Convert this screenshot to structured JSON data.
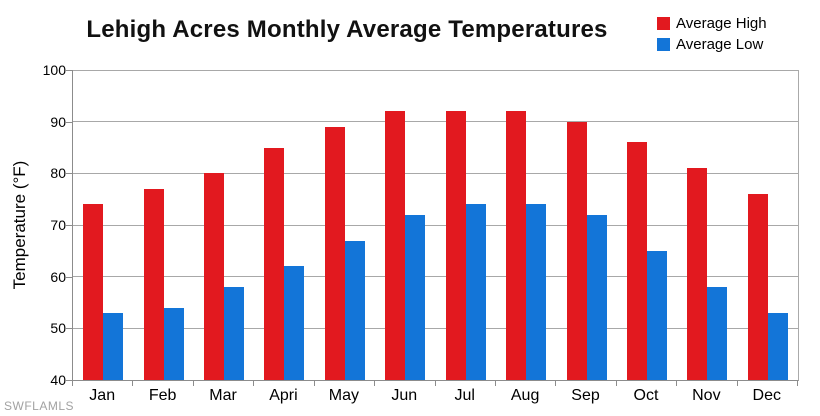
{
  "title": "Lehigh Acres Monthly Average Temperatures",
  "watermark": "SWFLAMLS",
  "colors": {
    "high_bar": "#e2191f",
    "low_bar": "#1375d8",
    "gridline": "#a8a8a8",
    "axis": "#8c8c8c",
    "text": "#000000",
    "watermark": "#a2a2a2"
  },
  "legend": {
    "position": "top-right",
    "items": [
      {
        "label": "Average High",
        "color": "#e2191f"
      },
      {
        "label": "Average Low",
        "color": "#1375d8"
      }
    ]
  },
  "chart_data": {
    "type": "bar",
    "title": "Lehigh Acres Monthly Average Temperatures",
    "xlabel": "",
    "ylabel": "Temperature (°F)",
    "ylim": [
      40,
      100
    ],
    "yticks": [
      100,
      90,
      80,
      70,
      60,
      50,
      40
    ],
    "grid": true,
    "legend_position": "top-right",
    "categories": [
      "Jan",
      "Feb",
      "Mar",
      "Apri",
      "May",
      "Jun",
      "Jul",
      "Aug",
      "Sep",
      "Oct",
      "Nov",
      "Dec"
    ],
    "series": [
      {
        "name": "Average High",
        "color": "#e2191f",
        "values": [
          74,
          77,
          80,
          85,
          89,
          92,
          92,
          92,
          90,
          86,
          81,
          76
        ]
      },
      {
        "name": "Average Low",
        "color": "#1375d8",
        "values": [
          53,
          54,
          58,
          62,
          67,
          72,
          74,
          74,
          72,
          65,
          58,
          53
        ]
      }
    ]
  }
}
